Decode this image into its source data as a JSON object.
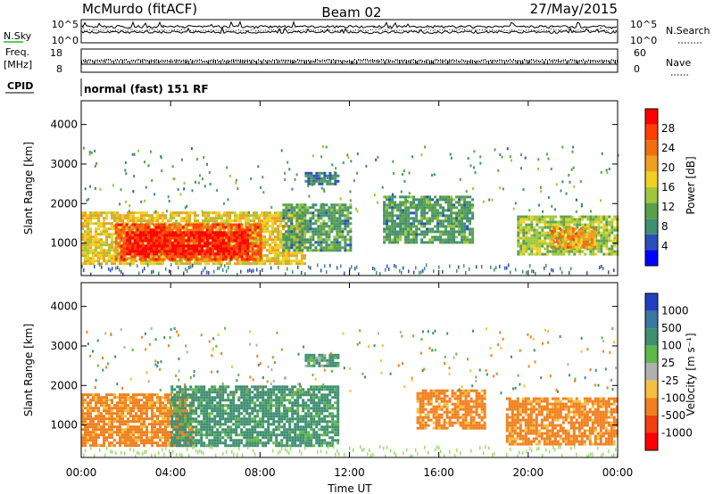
{
  "header": {
    "station": "McMurdo (fitACF)",
    "beam": "Beam 02",
    "date": "27/May/2015"
  },
  "summary_panel": {
    "nsky_label": "N.Sky",
    "nsearch_label": "N.Search",
    "freq_label_line1": "Freq.",
    "freq_label_line2": "[MHz]",
    "nave_label": "Nave",
    "cpid_label": "CPID",
    "noise_ticks_left": [
      "10^5",
      "10^0"
    ],
    "noise_ticks_right": [
      "10^5",
      "10^0"
    ],
    "freq_ticks": [
      "18",
      "8"
    ],
    "nave_ticks": [
      "60",
      "0"
    ],
    "cpid_text": "normal (fast) 151 RF"
  },
  "colors": {
    "power": [
      "#0000ff",
      "#2a4fb8",
      "#3f8f72",
      "#5aa04a",
      "#9ec83a",
      "#f0d020",
      "#f0a020",
      "#f07010",
      "#ff4000",
      "#ff0000"
    ],
    "velocity": [
      "#2040c0",
      "#3a78a0",
      "#3f8f72",
      "#5fb84a",
      "#b0b0b0",
      "#f5c040",
      "#f08020",
      "#f04010",
      "#ff0000"
    ]
  },
  "chart_data": [
    {
      "type": "heatmap",
      "name": "power",
      "ylabel": "Slant Range [km]",
      "xlabel": "",
      "ylim": [
        180,
        4600
      ],
      "yticks": [
        1000,
        2000,
        3000,
        4000
      ],
      "xlim": [
        0,
        24
      ],
      "colorbar": {
        "label": "Power [dB]",
        "range": [
          0,
          32
        ],
        "ticks": [
          4,
          8,
          12,
          16,
          20,
          24,
          28
        ]
      },
      "regions": [
        {
          "t0": 0.0,
          "t1": 10.0,
          "r0": 500,
          "r1": 1800,
          "value": 18
        },
        {
          "t0": 1.5,
          "t1": 8.0,
          "r0": 600,
          "r1": 1500,
          "value": 26
        },
        {
          "t0": 2.0,
          "t1": 7.5,
          "r0": 700,
          "r1": 1300,
          "value": 30
        },
        {
          "t0": 9.0,
          "t1": 12.0,
          "r0": 800,
          "r1": 2000,
          "value": 10
        },
        {
          "t0": 10.0,
          "t1": 11.5,
          "r0": 2500,
          "r1": 2800,
          "value": 8
        },
        {
          "t0": 13.5,
          "t1": 17.5,
          "r0": 1000,
          "r1": 2200,
          "value": 10
        },
        {
          "t0": 19.5,
          "t1": 24.0,
          "r0": 700,
          "r1": 1700,
          "value": 14
        },
        {
          "t0": 21.0,
          "t1": 23.0,
          "r0": 900,
          "r1": 1400,
          "value": 22
        }
      ]
    },
    {
      "type": "heatmap",
      "name": "velocity",
      "ylabel": "Slant Range [km]",
      "xlabel": "Time UT",
      "ylim": [
        180,
        4600
      ],
      "yticks": [
        1000,
        2000,
        3000,
        4000
      ],
      "xlim": [
        0,
        24
      ],
      "xticks": [
        "00:00",
        "04:00",
        "08:00",
        "12:00",
        "16:00",
        "20:00",
        "00:00"
      ],
      "colorbar": {
        "label": "Velocity [m s⁻¹]",
        "ticks": [
          "1000",
          "500",
          "100",
          "25",
          "-25",
          "-100",
          "-500",
          "-1000"
        ]
      },
      "regions": [
        {
          "t0": 0.0,
          "t1": 5.0,
          "r0": 500,
          "r1": 1800,
          "value": -200
        },
        {
          "t0": 4.0,
          "t1": 11.5,
          "r0": 500,
          "r1": 2000,
          "value": 200
        },
        {
          "t0": 10.0,
          "t1": 11.5,
          "r0": 2500,
          "r1": 2800,
          "value": 150
        },
        {
          "t0": 15.0,
          "t1": 18.0,
          "r0": 900,
          "r1": 1900,
          "value": -200
        },
        {
          "t0": 19.0,
          "t1": 24.0,
          "r0": 500,
          "r1": 1700,
          "value": -200
        }
      ]
    }
  ]
}
